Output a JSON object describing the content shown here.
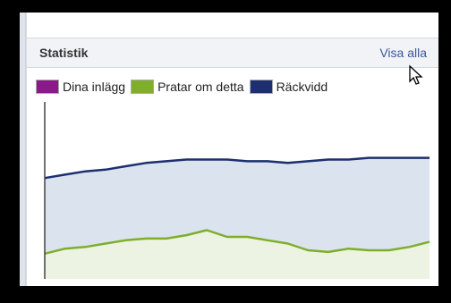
{
  "panel": {
    "title": "Statistik",
    "see_all_label": "Visa alla"
  },
  "legend": [
    {
      "label": "Dina inlägg",
      "color": "#8b1a89"
    },
    {
      "label": "Pratar om detta",
      "color": "#7fae2a"
    },
    {
      "label": "Räckvidd",
      "color": "#1d2f6e"
    }
  ],
  "chart_data": {
    "type": "area",
    "grid": false,
    "series": [
      {
        "name": "Räckvidd",
        "color": "#1d2f6e",
        "fill": "#dbe3ef",
        "values": [
          60,
          62,
          64,
          65,
          67,
          69,
          70,
          71,
          71,
          71,
          70,
          70,
          69,
          70,
          71,
          71,
          72,
          72,
          72,
          72
        ]
      },
      {
        "name": "Pratar om detta",
        "color": "#7fae2a",
        "fill": "#ecf3e2",
        "values": [
          15,
          18,
          19,
          21,
          23,
          24,
          24,
          26,
          29,
          25,
          25,
          23,
          21,
          17,
          16,
          18,
          17,
          17,
          19,
          22
        ]
      },
      {
        "name": "Dina inlägg",
        "color": "#8b1a89",
        "fill": "none",
        "values": []
      }
    ],
    "ylim": [
      0,
      100
    ]
  }
}
